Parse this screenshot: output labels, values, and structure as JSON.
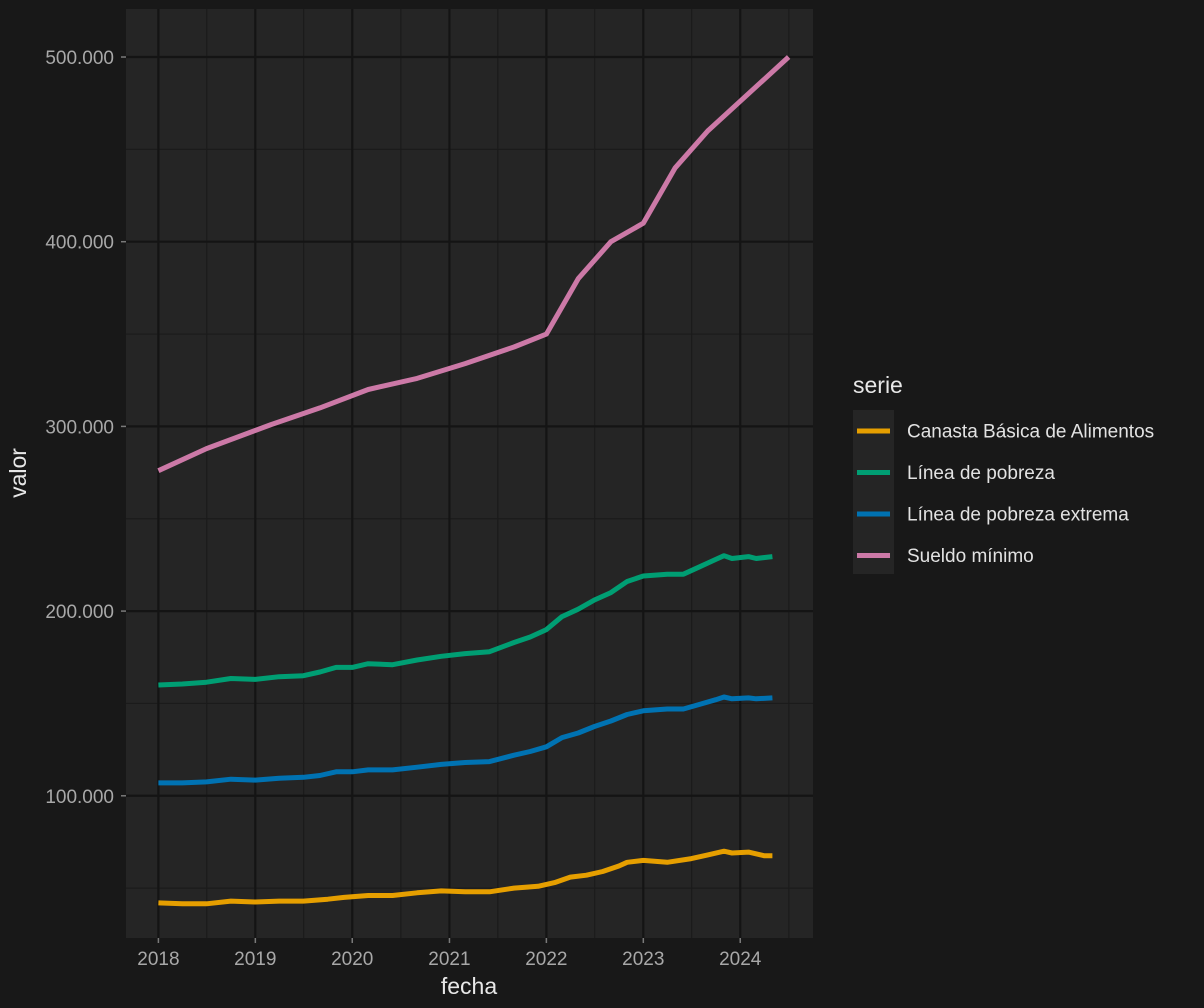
{
  "chart_data": {
    "type": "line",
    "xlabel": "fecha",
    "ylabel": "valor",
    "xlim": [
      "2017-09-01",
      "2024-10-01"
    ],
    "ylim": [
      23000,
      526000
    ],
    "x_ticks": [
      "2018",
      "2019",
      "2020",
      "2021",
      "2022",
      "2023",
      "2024"
    ],
    "y_ticks": [
      {
        "value": 100000,
        "label": "100.000"
      },
      {
        "value": 200000,
        "label": "200.000"
      },
      {
        "value": 300000,
        "label": "300.000"
      },
      {
        "value": 400000,
        "label": "400.000"
      },
      {
        "value": 500000,
        "label": "500.000"
      }
    ],
    "y_minor": [
      50000,
      150000,
      250000,
      350000,
      450000
    ],
    "grid": true,
    "legend": {
      "title": "serie",
      "position": "right"
    },
    "series": [
      {
        "name": "Canasta Básica de Alimentos",
        "color": "#E69F00",
        "points": [
          [
            "2018-01-01",
            42000
          ],
          [
            "2018-04-01",
            41500
          ],
          [
            "2018-07-01",
            41500
          ],
          [
            "2018-10-01",
            43000
          ],
          [
            "2019-01-01",
            42500
          ],
          [
            "2019-04-01",
            43000
          ],
          [
            "2019-07-01",
            43000
          ],
          [
            "2019-10-01",
            44000
          ],
          [
            "2019-12-01",
            45000
          ],
          [
            "2020-03-01",
            46000
          ],
          [
            "2020-06-01",
            46000
          ],
          [
            "2020-09-01",
            47500
          ],
          [
            "2020-12-01",
            48500
          ],
          [
            "2021-03-01",
            48000
          ],
          [
            "2021-06-01",
            48000
          ],
          [
            "2021-09-01",
            50000
          ],
          [
            "2021-12-01",
            51000
          ],
          [
            "2022-02-01",
            53000
          ],
          [
            "2022-04-01",
            56000
          ],
          [
            "2022-06-01",
            57000
          ],
          [
            "2022-08-01",
            59000
          ],
          [
            "2022-10-01",
            62000
          ],
          [
            "2022-11-01",
            64000
          ],
          [
            "2023-01-01",
            65000
          ],
          [
            "2023-04-01",
            64000
          ],
          [
            "2023-07-01",
            66000
          ],
          [
            "2023-09-01",
            68000
          ],
          [
            "2023-11-01",
            70000
          ],
          [
            "2023-12-01",
            69000
          ],
          [
            "2024-02-01",
            69500
          ],
          [
            "2024-04-01",
            67500
          ],
          [
            "2024-05-01",
            67500
          ]
        ]
      },
      {
        "name": "Línea de pobreza",
        "color": "#009E73",
        "points": [
          [
            "2018-01-01",
            160000
          ],
          [
            "2018-04-01",
            160500
          ],
          [
            "2018-07-01",
            161500
          ],
          [
            "2018-10-01",
            163500
          ],
          [
            "2019-01-01",
            163000
          ],
          [
            "2019-04-01",
            164500
          ],
          [
            "2019-07-01",
            165000
          ],
          [
            "2019-09-01",
            167000
          ],
          [
            "2019-11-01",
            169500
          ],
          [
            "2020-01-01",
            169500
          ],
          [
            "2020-03-01",
            171500
          ],
          [
            "2020-06-01",
            171000
          ],
          [
            "2020-09-01",
            173500
          ],
          [
            "2020-12-01",
            175500
          ],
          [
            "2021-03-01",
            177000
          ],
          [
            "2021-06-01",
            178000
          ],
          [
            "2021-09-01",
            183000
          ],
          [
            "2021-11-01",
            186000
          ],
          [
            "2022-01-01",
            190000
          ],
          [
            "2022-03-01",
            197000
          ],
          [
            "2022-05-01",
            201000
          ],
          [
            "2022-07-01",
            206000
          ],
          [
            "2022-09-01",
            210000
          ],
          [
            "2022-11-01",
            216000
          ],
          [
            "2023-01-01",
            219000
          ],
          [
            "2023-04-01",
            220000
          ],
          [
            "2023-06-01",
            220000
          ],
          [
            "2023-08-01",
            224000
          ],
          [
            "2023-10-01",
            228000
          ],
          [
            "2023-11-01",
            230000
          ],
          [
            "2023-12-01",
            228500
          ],
          [
            "2024-02-01",
            229500
          ],
          [
            "2024-03-01",
            228500
          ],
          [
            "2024-05-01",
            229500
          ]
        ]
      },
      {
        "name": "Línea de pobreza extrema",
        "color": "#0072B2",
        "points": [
          [
            "2018-01-01",
            107000
          ],
          [
            "2018-04-01",
            107000
          ],
          [
            "2018-07-01",
            107500
          ],
          [
            "2018-10-01",
            109000
          ],
          [
            "2019-01-01",
            108500
          ],
          [
            "2019-04-01",
            109500
          ],
          [
            "2019-07-01",
            110000
          ],
          [
            "2019-09-01",
            111000
          ],
          [
            "2019-11-01",
            113000
          ],
          [
            "2020-01-01",
            113000
          ],
          [
            "2020-03-01",
            114000
          ],
          [
            "2020-06-01",
            114000
          ],
          [
            "2020-09-01",
            115500
          ],
          [
            "2020-12-01",
            117000
          ],
          [
            "2021-03-01",
            118000
          ],
          [
            "2021-06-01",
            118500
          ],
          [
            "2021-09-01",
            122000
          ],
          [
            "2021-11-01",
            124000
          ],
          [
            "2022-01-01",
            126500
          ],
          [
            "2022-03-01",
            131500
          ],
          [
            "2022-05-01",
            134000
          ],
          [
            "2022-07-01",
            137500
          ],
          [
            "2022-09-01",
            140500
          ],
          [
            "2022-11-01",
            144000
          ],
          [
            "2023-01-01",
            146000
          ],
          [
            "2023-04-01",
            147000
          ],
          [
            "2023-06-01",
            147000
          ],
          [
            "2023-08-01",
            149500
          ],
          [
            "2023-10-01",
            152000
          ],
          [
            "2023-11-01",
            153500
          ],
          [
            "2023-12-01",
            152500
          ],
          [
            "2024-02-01",
            153000
          ],
          [
            "2024-03-01",
            152500
          ],
          [
            "2024-05-01",
            153000
          ]
        ]
      },
      {
        "name": "Sueldo mínimo",
        "color": "#CC79A7",
        "points": [
          [
            "2018-01-01",
            276000
          ],
          [
            "2018-07-01",
            288000
          ],
          [
            "2019-03-01",
            301000
          ],
          [
            "2019-09-01",
            310000
          ],
          [
            "2020-03-01",
            320000
          ],
          [
            "2020-09-01",
            326000
          ],
          [
            "2021-03-01",
            334000
          ],
          [
            "2021-09-01",
            343000
          ],
          [
            "2022-01-01",
            350000
          ],
          [
            "2022-05-01",
            380000
          ],
          [
            "2022-09-01",
            400000
          ],
          [
            "2023-01-01",
            410000
          ],
          [
            "2023-05-01",
            440000
          ],
          [
            "2023-09-01",
            460000
          ],
          [
            "2024-07-01",
            500000
          ]
        ]
      }
    ]
  }
}
